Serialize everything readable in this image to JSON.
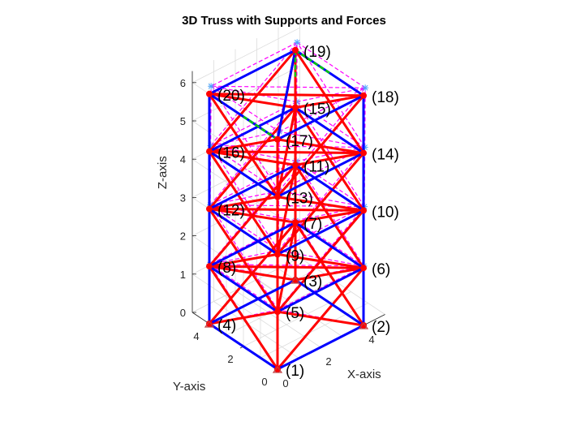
{
  "chart_data": {
    "type": "3d-truss",
    "title": "3D Truss with Supports and Forces",
    "xlabel": "X-axis",
    "ylabel": "Y-axis",
    "zlabel": "Z-axis",
    "xlim": [
      0,
      5
    ],
    "ylim": [
      0,
      5
    ],
    "zlim": [
      0,
      6.3
    ],
    "x_ticks": [
      "0",
      "2",
      "4"
    ],
    "y_ticks": [
      "0",
      "2",
      "4"
    ],
    "z_ticks": [
      "0",
      "1",
      "2",
      "3",
      "4",
      "5",
      "6"
    ],
    "grid": true,
    "colors": {
      "blue_member": "#0000ff",
      "red_member": "#ff0000",
      "node": "#ff0000",
      "deformed": "#ff00ff",
      "marker": "#4da6ff",
      "force": "#00cc00"
    },
    "nodes": [
      {
        "id": 1,
        "label": "(1)",
        "x": 0,
        "y": 0,
        "z": 0
      },
      {
        "id": 2,
        "label": "(2)",
        "x": 4,
        "y": 0,
        "z": 0
      },
      {
        "id": 3,
        "label": "(3)",
        "x": 4,
        "y": 4,
        "z": 0
      },
      {
        "id": 4,
        "label": "(4)",
        "x": 0,
        "y": 4,
        "z": 0
      },
      {
        "id": 5,
        "label": "(5)",
        "x": 0,
        "y": 0,
        "z": 1.5
      },
      {
        "id": 6,
        "label": "(6)",
        "x": 4,
        "y": 0,
        "z": 1.5
      },
      {
        "id": 7,
        "label": "(7)",
        "x": 4,
        "y": 4,
        "z": 1.5
      },
      {
        "id": 8,
        "label": "(8)",
        "x": 0,
        "y": 4,
        "z": 1.5
      },
      {
        "id": 9,
        "label": "(9)",
        "x": 0,
        "y": 0,
        "z": 3
      },
      {
        "id": 10,
        "label": "(10)",
        "x": 4,
        "y": 0,
        "z": 3
      },
      {
        "id": 11,
        "label": "(11)",
        "x": 4,
        "y": 4,
        "z": 3
      },
      {
        "id": 12,
        "label": "(12)",
        "x": 0,
        "y": 4,
        "z": 3
      },
      {
        "id": 13,
        "label": "(13)",
        "x": 0,
        "y": 0,
        "z": 4.5
      },
      {
        "id": 14,
        "label": "(14)",
        "x": 4,
        "y": 0,
        "z": 4.5
      },
      {
        "id": 15,
        "label": "(15)",
        "x": 4,
        "y": 4,
        "z": 4.5
      },
      {
        "id": 16,
        "label": "(16)",
        "x": 0,
        "y": 4,
        "z": 4.5
      },
      {
        "id": 17,
        "label": "(17)",
        "x": 0,
        "y": 0,
        "z": 6
      },
      {
        "id": 18,
        "label": "(18)",
        "x": 4,
        "y": 0,
        "z": 6
      },
      {
        "id": 19,
        "label": "(19)",
        "x": 4,
        "y": 4,
        "z": 6
      },
      {
        "id": 20,
        "label": "(20)",
        "x": 0,
        "y": 4,
        "z": 6
      }
    ],
    "blue_members": [
      [
        1,
        2
      ],
      [
        2,
        3
      ],
      [
        3,
        4
      ],
      [
        4,
        1
      ],
      [
        5,
        6
      ],
      [
        6,
        7
      ],
      [
        7,
        8
      ],
      [
        8,
        5
      ],
      [
        9,
        10
      ],
      [
        10,
        11
      ],
      [
        11,
        12
      ],
      [
        12,
        9
      ],
      [
        13,
        14
      ],
      [
        14,
        15
      ],
      [
        15,
        16
      ],
      [
        16,
        13
      ],
      [
        17,
        18
      ],
      [
        18,
        19
      ],
      [
        19,
        20
      ],
      [
        20,
        17
      ],
      [
        4,
        8
      ],
      [
        8,
        12
      ],
      [
        12,
        16
      ],
      [
        16,
        20
      ],
      [
        2,
        6
      ],
      [
        6,
        10
      ],
      [
        10,
        14
      ],
      [
        14,
        18
      ],
      [
        17,
        19
      ]
    ],
    "red_members": [
      [
        1,
        5
      ],
      [
        5,
        9
      ],
      [
        9,
        13
      ],
      [
        13,
        17
      ],
      [
        3,
        7
      ],
      [
        7,
        11
      ],
      [
        11,
        15
      ],
      [
        15,
        19
      ],
      [
        1,
        6
      ],
      [
        2,
        5
      ],
      [
        1,
        8
      ],
      [
        4,
        5
      ],
      [
        2,
        7
      ],
      [
        3,
        6
      ],
      [
        3,
        8
      ],
      [
        4,
        7
      ],
      [
        5,
        10
      ],
      [
        6,
        9
      ],
      [
        5,
        12
      ],
      [
        8,
        9
      ],
      [
        6,
        11
      ],
      [
        7,
        10
      ],
      [
        7,
        12
      ],
      [
        8,
        11
      ],
      [
        9,
        14
      ],
      [
        10,
        13
      ],
      [
        9,
        16
      ],
      [
        12,
        13
      ],
      [
        10,
        15
      ],
      [
        11,
        14
      ],
      [
        11,
        16
      ],
      [
        12,
        15
      ],
      [
        13,
        18
      ],
      [
        14,
        17
      ],
      [
        13,
        20
      ],
      [
        16,
        17
      ],
      [
        14,
        19
      ],
      [
        15,
        18
      ],
      [
        15,
        20
      ],
      [
        16,
        19
      ],
      [
        5,
        7
      ],
      [
        6,
        8
      ],
      [
        9,
        11
      ],
      [
        10,
        12
      ],
      [
        13,
        15
      ],
      [
        14,
        16
      ],
      [
        17,
        19
      ],
      [
        18,
        20
      ]
    ],
    "deformed_offset": [
      0.2,
      0.15,
      0.1
    ],
    "force_members": [
      [
        19,
        15
      ],
      [
        17,
        20
      ],
      [
        19,
        18
      ]
    ]
  }
}
